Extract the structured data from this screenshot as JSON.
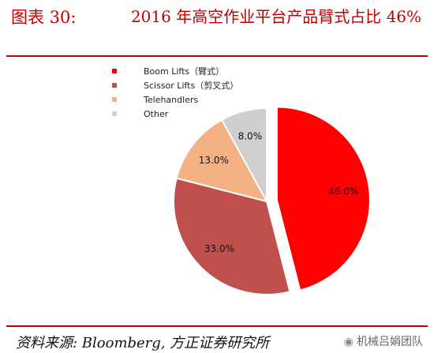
{
  "header": {
    "figure_label": "图表 30:",
    "title": "2016 年高空作业平台产品臂式占比 46%"
  },
  "chart_data": {
    "type": "pie",
    "title": "2016 年高空作业平台产品臂式占比 46%",
    "categories": [
      "Boom Lifts（臂式）",
      "Scissor Lifts（剪叉式）",
      "Telehandlers",
      "Other"
    ],
    "values": [
      46.0,
      33.0,
      13.0,
      8.0
    ],
    "value_labels": [
      "46.0%",
      "33.0%",
      "13.0%",
      "8.0%"
    ],
    "colors": [
      "#ff0000",
      "#c0504d",
      "#f4b183",
      "#d0cece"
    ],
    "legend_position": "top-left",
    "exploded_slice": "Boom Lifts（臂式）"
  },
  "footer": {
    "source": "资料来源: Bloomberg, 方正证券研究所",
    "watermark": "机械吕娟团队"
  }
}
